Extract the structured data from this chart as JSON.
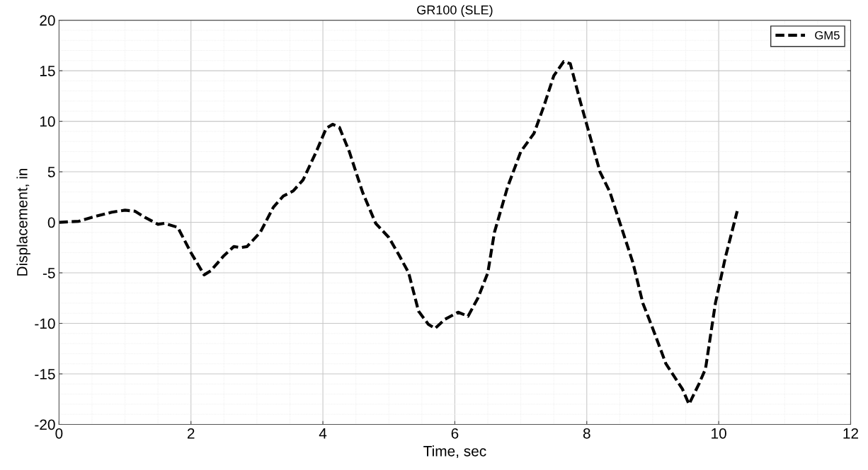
{
  "chart_data": {
    "type": "line",
    "title": "GR100 (SLE)",
    "xlabel": "Time, sec",
    "ylabel": "Displacement, in",
    "xlim": [
      0,
      12
    ],
    "xticks": [
      0,
      2,
      4,
      6,
      8,
      10,
      12
    ],
    "ylim": [
      -20,
      20
    ],
    "yticks": [
      -20,
      -15,
      -10,
      -5,
      0,
      5,
      10,
      15,
      20
    ],
    "grid": true,
    "legend": "top right",
    "line_style": "dashed",
    "marker": "none",
    "series": [
      {
        "name": "GM5",
        "color": "#000000",
        "x": [
          0,
          0.3,
          0.5,
          0.8,
          1.0,
          1.15,
          1.3,
          1.5,
          1.6,
          1.8,
          2.0,
          2.2,
          2.3,
          2.5,
          2.65,
          2.75,
          2.85,
          3.05,
          3.25,
          3.4,
          3.55,
          3.7,
          3.9,
          4.05,
          4.15,
          4.25,
          4.4,
          4.6,
          4.8,
          5.0,
          5.15,
          5.3,
          5.45,
          5.6,
          5.7,
          5.85,
          6.05,
          6.2,
          6.35,
          6.5,
          6.6,
          6.8,
          7.0,
          7.2,
          7.35,
          7.5,
          7.65,
          7.75,
          7.9,
          8.05,
          8.2,
          8.35,
          8.5,
          8.7,
          8.85,
          9.0,
          9.2,
          9.35,
          9.45,
          9.55,
          9.7,
          9.8,
          9.95,
          10.1,
          10.28
        ],
        "values": [
          0,
          0.1,
          0.5,
          1.0,
          1.2,
          1.1,
          0.5,
          -0.2,
          -0.1,
          -0.5,
          -3.0,
          -5.2,
          -4.8,
          -3.3,
          -2.4,
          -2.5,
          -2.4,
          -1.0,
          1.5,
          2.6,
          3.1,
          4.2,
          7.0,
          9.3,
          9.7,
          9.4,
          7.0,
          3.0,
          -0.1,
          -1.5,
          -3.2,
          -5.0,
          -8.8,
          -10.1,
          -10.5,
          -9.6,
          -8.9,
          -9.3,
          -7.5,
          -5.0,
          -1.0,
          3.5,
          7.0,
          8.8,
          11.5,
          14.5,
          15.9,
          15.7,
          12.0,
          8.5,
          5.0,
          3.0,
          0.0,
          -4.0,
          -8.0,
          -10.5,
          -14.0,
          -15.5,
          -16.5,
          -18.0,
          -16.0,
          -14.5,
          -8.0,
          -3.5,
          1.1
        ]
      }
    ]
  }
}
